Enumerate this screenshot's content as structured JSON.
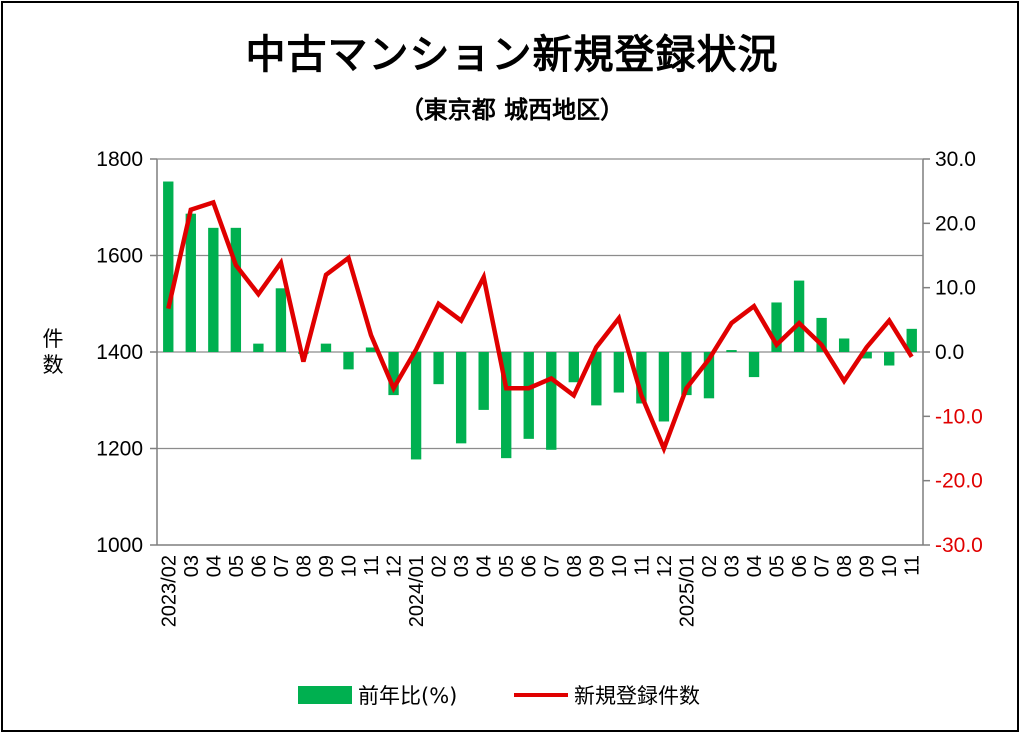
{
  "chart_data": {
    "type": "bar+line",
    "title": "中古マンション新規登録状況",
    "subtitle": "（東京都 城西地区）",
    "ylabel": "件数",
    "ylim": [
      1000,
      1800
    ],
    "y2lim": [
      -30,
      30
    ],
    "y_ticks": [
      "1800",
      "1600",
      "1400",
      "1200",
      "1000"
    ],
    "y2_ticks": [
      "30.0",
      "20.0",
      "10.0",
      "0.0",
      "-10.0",
      "-20.0",
      "-30.0"
    ],
    "categories": [
      "2023/02",
      "03",
      "04",
      "05",
      "06",
      "07",
      "08",
      "09",
      "10",
      "11",
      "12",
      "2024/01",
      "02",
      "03",
      "04",
      "05",
      "06",
      "07",
      "08",
      "09",
      "10",
      "11",
      "12",
      "2025/01",
      "02",
      "03",
      "04",
      "05",
      "06",
      "07",
      "08",
      "09",
      "10",
      "11"
    ],
    "grid": true,
    "legend_position": "bottom",
    "series": [
      {
        "name": "前年比(%)",
        "type": "bar",
        "axis": "y2",
        "color": "#00b050",
        "values": [
          26.5,
          21.5,
          19.3,
          19.3,
          1.3,
          9.9,
          -0.3,
          1.3,
          -2.7,
          0.7,
          -6.7,
          -16.7,
          -5.0,
          -14.2,
          -9.0,
          -16.5,
          -13.5,
          -15.2,
          -4.7,
          -8.3,
          -6.3,
          -8.0,
          -10.8,
          -6.7,
          -7.2,
          0.3,
          -3.9,
          7.7,
          11.1,
          5.3,
          2.1,
          -1.0,
          -2.1,
          3.6
        ]
      },
      {
        "name": "新規登録件数",
        "type": "line",
        "axis": "y",
        "color": "#e00000",
        "values": [
          1490,
          1695,
          1710,
          1580,
          1520,
          1585,
          1380,
          1560,
          1595,
          1435,
          1325,
          1405,
          1500,
          1465,
          1555,
          1325,
          1325,
          1345,
          1310,
          1410,
          1470,
          1310,
          1200,
          1325,
          1385,
          1460,
          1495,
          1415,
          1460,
          1415,
          1340,
          1410,
          1465,
          1390
        ]
      }
    ]
  },
  "legend": {
    "bar_label": "前年比(%)",
    "line_label": "新規登録件数"
  }
}
